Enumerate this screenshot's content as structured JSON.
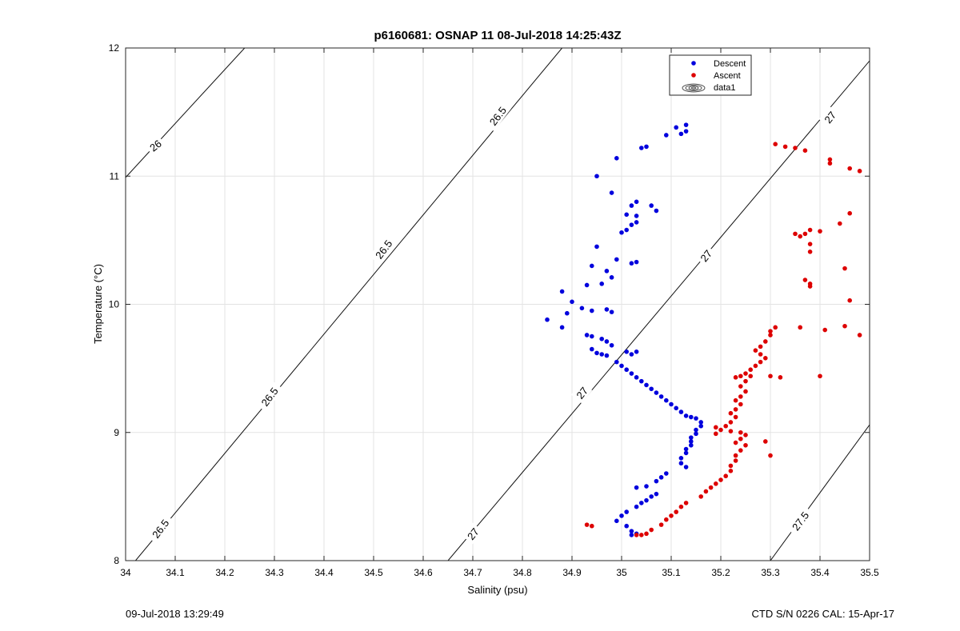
{
  "chart_data": {
    "type": "scatter",
    "title": "p6160681: OSNAP 11 08-Jul-2018 14:25:43Z",
    "xlabel": "Salinity (psu)",
    "ylabel": "Temperature (°C)",
    "xlim": [
      34,
      35.5
    ],
    "ylim": [
      8,
      12
    ],
    "x_ticks": [
      "34",
      "34.1",
      "34.2",
      "34.3",
      "34.4",
      "34.5",
      "34.6",
      "34.7",
      "34.8",
      "34.9",
      "35",
      "35.1",
      "35.2",
      "35.3",
      "35.4",
      "35.5"
    ],
    "y_ticks": [
      "8",
      "9",
      "10",
      "11",
      "12"
    ],
    "grid": true,
    "legend": {
      "placement": "top-right"
    },
    "series": [
      {
        "name": "Descent",
        "color": "#0000dd",
        "marker": "filled-circle",
        "points": [
          [
            35.13,
            11.4
          ],
          [
            35.11,
            11.38
          ],
          [
            35.13,
            11.35
          ],
          [
            35.12,
            11.33
          ],
          [
            35.09,
            11.32
          ],
          [
            35.05,
            11.23
          ],
          [
            35.04,
            11.22
          ],
          [
            34.99,
            11.14
          ],
          [
            34.95,
            11.0
          ],
          [
            34.98,
            10.87
          ],
          [
            35.03,
            10.8
          ],
          [
            35.02,
            10.77
          ],
          [
            35.06,
            10.77
          ],
          [
            35.07,
            10.73
          ],
          [
            35.01,
            10.7
          ],
          [
            35.03,
            10.69
          ],
          [
            35.03,
            10.64
          ],
          [
            35.02,
            10.62
          ],
          [
            35.0,
            10.56
          ],
          [
            35.01,
            10.58
          ],
          [
            34.95,
            10.45
          ],
          [
            34.99,
            10.35
          ],
          [
            35.03,
            10.33
          ],
          [
            35.02,
            10.32
          ],
          [
            34.94,
            10.3
          ],
          [
            34.97,
            10.26
          ],
          [
            34.98,
            10.21
          ],
          [
            34.96,
            10.16
          ],
          [
            34.93,
            10.15
          ],
          [
            34.88,
            10.1
          ],
          [
            34.9,
            10.02
          ],
          [
            34.92,
            9.97
          ],
          [
            34.97,
            9.96
          ],
          [
            34.94,
            9.95
          ],
          [
            34.89,
            9.93
          ],
          [
            34.98,
            9.94
          ],
          [
            34.85,
            9.88
          ],
          [
            34.88,
            9.82
          ],
          [
            34.93,
            9.76
          ],
          [
            34.94,
            9.75
          ],
          [
            34.96,
            9.73
          ],
          [
            34.97,
            9.71
          ],
          [
            34.98,
            9.68
          ],
          [
            34.94,
            9.65
          ],
          [
            34.95,
            9.62
          ],
          [
            34.96,
            9.61
          ],
          [
            34.97,
            9.6
          ],
          [
            35.01,
            9.63
          ],
          [
            35.03,
            9.63
          ],
          [
            35.02,
            9.61
          ],
          [
            34.99,
            9.55
          ],
          [
            35.0,
            9.52
          ],
          [
            35.01,
            9.49
          ],
          [
            35.02,
            9.46
          ],
          [
            35.03,
            9.43
          ],
          [
            35.04,
            9.4
          ],
          [
            35.05,
            9.37
          ],
          [
            35.06,
            9.34
          ],
          [
            35.07,
            9.31
          ],
          [
            35.08,
            9.28
          ],
          [
            35.09,
            9.25
          ],
          [
            35.1,
            9.22
          ],
          [
            35.11,
            9.19
          ],
          [
            35.12,
            9.16
          ],
          [
            35.13,
            9.13
          ],
          [
            35.14,
            9.12
          ],
          [
            35.15,
            9.11
          ],
          [
            35.16,
            9.08
          ],
          [
            35.16,
            9.05
          ],
          [
            35.15,
            9.02
          ],
          [
            35.15,
            8.99
          ],
          [
            35.14,
            8.96
          ],
          [
            35.14,
            8.93
          ],
          [
            35.14,
            8.9
          ],
          [
            35.13,
            8.87
          ],
          [
            35.13,
            8.84
          ],
          [
            35.12,
            8.8
          ],
          [
            35.12,
            8.76
          ],
          [
            35.13,
            8.73
          ],
          [
            35.09,
            8.68
          ],
          [
            35.08,
            8.65
          ],
          [
            35.07,
            8.62
          ],
          [
            35.05,
            8.58
          ],
          [
            35.03,
            8.57
          ],
          [
            35.07,
            8.52
          ],
          [
            35.06,
            8.5
          ],
          [
            35.05,
            8.47
          ],
          [
            35.04,
            8.45
          ],
          [
            35.03,
            8.42
          ],
          [
            35.01,
            8.38
          ],
          [
            35.0,
            8.35
          ],
          [
            34.99,
            8.31
          ],
          [
            35.01,
            8.27
          ],
          [
            35.02,
            8.23
          ],
          [
            35.03,
            8.21
          ],
          [
            35.02,
            8.2
          ]
        ]
      },
      {
        "name": "Ascent",
        "color": "#dd0000",
        "marker": "filled-circle",
        "points": [
          [
            35.31,
            11.25
          ],
          [
            35.33,
            11.23
          ],
          [
            35.35,
            11.22
          ],
          [
            35.37,
            11.2
          ],
          [
            35.42,
            11.13
          ],
          [
            35.42,
            11.1
          ],
          [
            35.46,
            11.06
          ],
          [
            35.48,
            11.04
          ],
          [
            35.46,
            10.71
          ],
          [
            35.44,
            10.63
          ],
          [
            35.38,
            10.58
          ],
          [
            35.4,
            10.57
          ],
          [
            35.35,
            10.55
          ],
          [
            35.37,
            10.55
          ],
          [
            35.36,
            10.53
          ],
          [
            35.38,
            10.47
          ],
          [
            35.38,
            10.41
          ],
          [
            35.45,
            10.28
          ],
          [
            35.37,
            10.19
          ],
          [
            35.38,
            10.16
          ],
          [
            35.38,
            10.14
          ],
          [
            35.46,
            10.03
          ],
          [
            35.31,
            9.82
          ],
          [
            35.3,
            9.79
          ],
          [
            35.36,
            9.82
          ],
          [
            35.41,
            9.8
          ],
          [
            35.45,
            9.83
          ],
          [
            35.48,
            9.76
          ],
          [
            35.3,
            9.76
          ],
          [
            35.29,
            9.71
          ],
          [
            35.28,
            9.67
          ],
          [
            35.27,
            9.64
          ],
          [
            35.28,
            9.61
          ],
          [
            35.29,
            9.58
          ],
          [
            35.28,
            9.55
          ],
          [
            35.27,
            9.52
          ],
          [
            35.26,
            9.49
          ],
          [
            35.25,
            9.46
          ],
          [
            35.24,
            9.44
          ],
          [
            35.23,
            9.43
          ],
          [
            35.26,
            9.44
          ],
          [
            35.3,
            9.44
          ],
          [
            35.32,
            9.43
          ],
          [
            35.4,
            9.44
          ],
          [
            35.25,
            9.4
          ],
          [
            35.24,
            9.36
          ],
          [
            35.25,
            9.32
          ],
          [
            35.24,
            9.28
          ],
          [
            35.23,
            9.25
          ],
          [
            35.24,
            9.22
          ],
          [
            35.23,
            9.18
          ],
          [
            35.22,
            9.15
          ],
          [
            35.23,
            9.12
          ],
          [
            35.22,
            9.08
          ],
          [
            35.21,
            9.05
          ],
          [
            35.19,
            9.04
          ],
          [
            35.2,
            9.02
          ],
          [
            35.22,
            9.01
          ],
          [
            35.24,
            9.0
          ],
          [
            35.25,
            8.98
          ],
          [
            35.19,
            8.99
          ],
          [
            35.24,
            8.95
          ],
          [
            35.23,
            8.92
          ],
          [
            35.29,
            8.93
          ],
          [
            35.25,
            8.9
          ],
          [
            35.24,
            8.86
          ],
          [
            35.23,
            8.82
          ],
          [
            35.23,
            8.78
          ],
          [
            35.3,
            8.82
          ],
          [
            35.22,
            8.74
          ],
          [
            35.22,
            8.7
          ],
          [
            35.21,
            8.66
          ],
          [
            35.2,
            8.63
          ],
          [
            35.19,
            8.6
          ],
          [
            35.18,
            8.57
          ],
          [
            35.17,
            8.54
          ],
          [
            35.16,
            8.5
          ],
          [
            35.13,
            8.45
          ],
          [
            35.12,
            8.42
          ],
          [
            35.11,
            8.38
          ],
          [
            35.1,
            8.35
          ],
          [
            35.09,
            8.32
          ],
          [
            35.08,
            8.28
          ],
          [
            35.06,
            8.24
          ],
          [
            35.05,
            8.21
          ],
          [
            35.04,
            8.2
          ],
          [
            35.03,
            8.2
          ],
          [
            34.93,
            8.28
          ],
          [
            34.94,
            8.27
          ]
        ]
      },
      {
        "name": "data1",
        "marker": "contour-lines"
      }
    ],
    "isopycnals": [
      {
        "label": "26",
        "x": [
          34.0,
          34.24
        ],
        "y": [
          10.99,
          12.0
        ]
      },
      {
        "label": "26.5",
        "x": [
          34.02,
          34.88
        ],
        "y": [
          8.0,
          12.0
        ]
      },
      {
        "label": "27",
        "x": [
          34.65,
          35.5
        ],
        "y": [
          8.0,
          11.9
        ]
      },
      {
        "label": "27.5",
        "x": [
          35.3,
          35.5
        ],
        "y": [
          8.0,
          9.06
        ]
      }
    ],
    "contour_labels": [
      {
        "text": "26",
        "x": 34.06,
        "y": 11.24,
        "angle": -38
      },
      {
        "text": "26.5",
        "x": 34.07,
        "y": 8.25,
        "angle": -53
      },
      {
        "text": "26.5",
        "x": 34.29,
        "y": 9.28,
        "angle": -53
      },
      {
        "text": "26.5",
        "x": 34.52,
        "y": 10.43,
        "angle": -53
      },
      {
        "text": "26.5",
        "x": 34.75,
        "y": 11.47,
        "angle": -53
      },
      {
        "text": "27",
        "x": 34.7,
        "y": 8.21,
        "angle": -51
      },
      {
        "text": "27",
        "x": 34.92,
        "y": 9.31,
        "angle": -51
      },
      {
        "text": "27",
        "x": 35.17,
        "y": 10.38,
        "angle": -51
      },
      {
        "text": "27",
        "x": 35.42,
        "y": 11.46,
        "angle": -51
      },
      {
        "text": "27.5",
        "x": 35.36,
        "y": 8.31,
        "angle": -53
      }
    ]
  },
  "footer": {
    "left": "09-Jul-2018 13:29:49",
    "right": "CTD S/N 0226  CAL: 15-Apr-17"
  }
}
